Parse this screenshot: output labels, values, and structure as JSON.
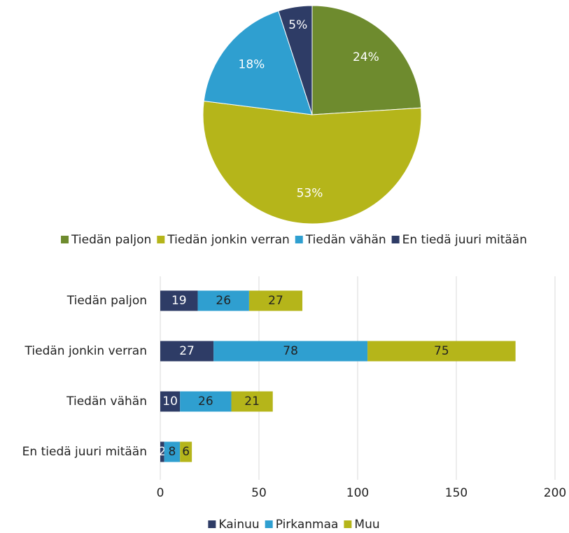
{
  "chart_data": [
    {
      "type": "pie",
      "categories": [
        "Tiedän paljon",
        "Tiedän jonkin verran",
        "Tiedän vähän",
        "En tiedä juuri mitään"
      ],
      "values": [
        24,
        53,
        18,
        5
      ],
      "value_labels": [
        "24%",
        "53%",
        "18%",
        "5%"
      ],
      "colors": [
        "#6e8b2e",
        "#b5b51a",
        "#2f9fd0",
        "#2e3c66"
      ],
      "legend": "bottom"
    },
    {
      "type": "bar",
      "orientation": "horizontal",
      "stacked": true,
      "categories": [
        "Tiedän paljon",
        "Tiedän jonkin verran",
        "Tiedän vähän",
        "En tiedä juuri mitään"
      ],
      "series": [
        {
          "name": "Kainuu",
          "color": "#2e3c66",
          "values": [
            19,
            27,
            10,
            2
          ]
        },
        {
          "name": "Pirkanmaa",
          "color": "#2f9fd0",
          "values": [
            26,
            78,
            26,
            8
          ]
        },
        {
          "name": "Muu",
          "color": "#b5b51a",
          "values": [
            27,
            75,
            21,
            6
          ]
        }
      ],
      "xlim": [
        0,
        200
      ],
      "xticks": [
        0,
        50,
        100,
        150,
        200
      ],
      "grid": true,
      "legend": "bottom"
    }
  ]
}
